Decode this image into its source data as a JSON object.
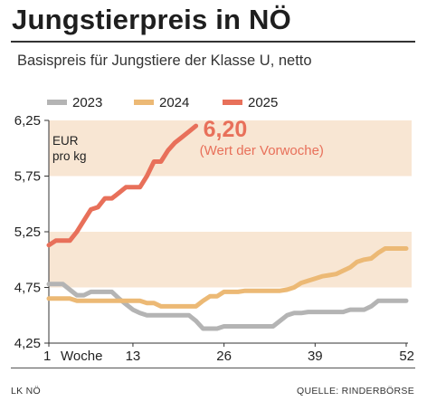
{
  "title": "Jungstierpreis in NÖ",
  "subtitle": "Basispreis für Jungstiere der Klasse U, netto",
  "footer": {
    "left": "LK NÖ",
    "right": "QUELLE: RINDERBÖRSE"
  },
  "colors": {
    "y2023": "#b4b4b4",
    "y2024": "#ecb975",
    "y2025": "#e8705a",
    "band": "#f8e6d3",
    "callout": "#e8705a"
  },
  "chart_data": {
    "type": "line",
    "ylim": [
      4.25,
      6.25
    ],
    "xlim": [
      1,
      52
    ],
    "yticks": [
      "4,25",
      "4,75",
      "5,25",
      "5,75",
      "6,25"
    ],
    "xticks": [
      "1",
      "13",
      "26",
      "39",
      "52"
    ],
    "xlabel": "Woche",
    "unit_label": [
      "EUR",
      "pro kg"
    ],
    "legend": "top",
    "grid": false,
    "callout": {
      "value": "6,20",
      "note": "(Wert der Vorwoche)"
    },
    "series": [
      {
        "name": "2023",
        "x": [
          1,
          2,
          3,
          4,
          5,
          6,
          7,
          8,
          9,
          10,
          11,
          12,
          13,
          14,
          15,
          16,
          17,
          18,
          19,
          20,
          21,
          22,
          23,
          24,
          25,
          26,
          27,
          28,
          29,
          30,
          31,
          32,
          33,
          34,
          35,
          36,
          37,
          38,
          39,
          40,
          41,
          42,
          43,
          44,
          45,
          46,
          47,
          48,
          49,
          50,
          51,
          52
        ],
        "values": [
          4.78,
          4.78,
          4.78,
          4.73,
          4.68,
          4.68,
          4.71,
          4.71,
          4.71,
          4.71,
          4.65,
          4.6,
          4.55,
          4.52,
          4.5,
          4.5,
          4.5,
          4.5,
          4.5,
          4.5,
          4.5,
          4.45,
          4.38,
          4.38,
          4.38,
          4.4,
          4.4,
          4.4,
          4.4,
          4.4,
          4.4,
          4.4,
          4.4,
          4.45,
          4.5,
          4.52,
          4.52,
          4.53,
          4.53,
          4.53,
          4.53,
          4.53,
          4.53,
          4.55,
          4.55,
          4.55,
          4.58,
          4.63,
          4.63,
          4.63,
          4.63,
          4.63
        ]
      },
      {
        "name": "2024",
        "x": [
          1,
          2,
          3,
          4,
          5,
          6,
          7,
          8,
          9,
          10,
          11,
          12,
          13,
          14,
          15,
          16,
          17,
          18,
          19,
          20,
          21,
          22,
          23,
          24,
          25,
          26,
          27,
          28,
          29,
          30,
          31,
          32,
          33,
          34,
          35,
          36,
          37,
          38,
          39,
          40,
          41,
          42,
          43,
          44,
          45,
          46,
          47,
          48,
          49,
          50,
          51,
          52
        ],
        "values": [
          4.65,
          4.65,
          4.65,
          4.65,
          4.63,
          4.63,
          4.63,
          4.63,
          4.63,
          4.63,
          4.63,
          4.63,
          4.63,
          4.63,
          4.61,
          4.61,
          4.58,
          4.58,
          4.58,
          4.58,
          4.58,
          4.58,
          4.63,
          4.67,
          4.67,
          4.71,
          4.71,
          4.71,
          4.72,
          4.72,
          4.72,
          4.72,
          4.72,
          4.72,
          4.73,
          4.75,
          4.79,
          4.81,
          4.83,
          4.85,
          4.86,
          4.87,
          4.9,
          4.93,
          4.98,
          5.0,
          5.01,
          5.06,
          5.1,
          5.1,
          5.1,
          5.1
        ]
      },
      {
        "name": "2025",
        "x": [
          1,
          2,
          3,
          4,
          5,
          6,
          7,
          8,
          9,
          10,
          11,
          12,
          13,
          14,
          15,
          16,
          17,
          18,
          19,
          20,
          21,
          22
        ],
        "values": [
          5.13,
          5.17,
          5.17,
          5.17,
          5.25,
          5.35,
          5.45,
          5.47,
          5.55,
          5.55,
          5.6,
          5.65,
          5.65,
          5.65,
          5.75,
          5.88,
          5.88,
          5.98,
          6.05,
          6.1,
          6.15,
          6.2
        ]
      }
    ]
  }
}
